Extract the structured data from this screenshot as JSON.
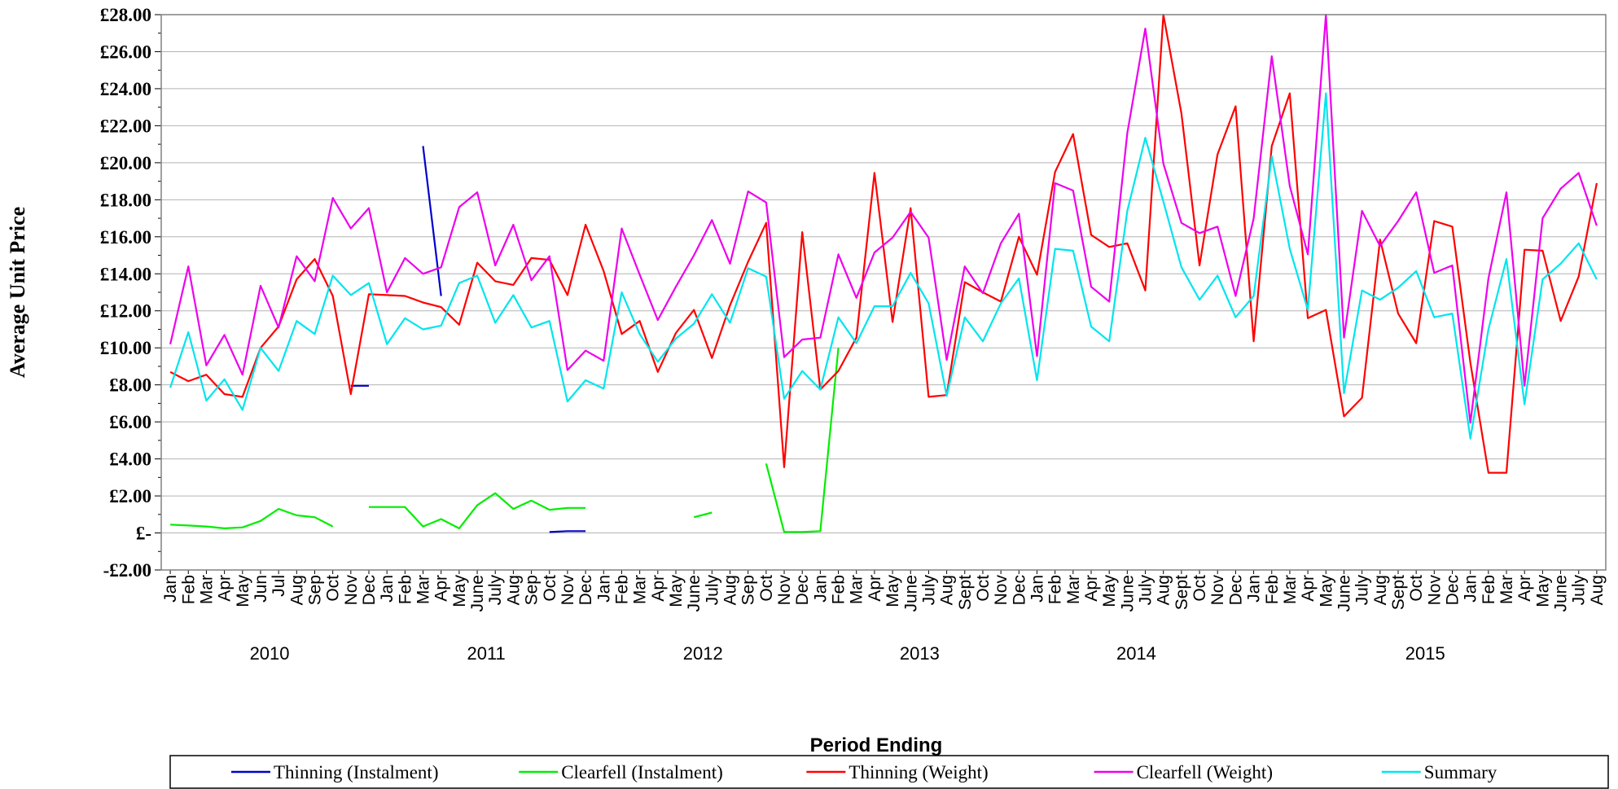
{
  "chart_data": {
    "type": "line",
    "title": "",
    "ylabel": "Average Unit Price",
    "xlabel": "Period Ending",
    "ylim": [
      -2,
      28
    ],
    "y_tick_labels": [
      "-£2.00",
      "£-",
      "£2.00",
      "£4.00",
      "£6.00",
      "£8.00",
      "£10.00",
      "£12.00",
      "£14.00",
      "£16.00",
      "£18.00",
      "£20.00",
      "£22.00",
      "£24.00",
      "£26.00",
      "£28.00"
    ],
    "grid": "horizontal",
    "legend_position": "bottom",
    "categories": [
      "Jan",
      "Feb",
      "Mar",
      "Apr",
      "May",
      "Jun",
      "Jul",
      "Aug",
      "Sep",
      "Oct",
      "Nov",
      "Dec",
      "Jan",
      "Feb",
      "Mar",
      "Apr",
      "May",
      "June",
      "July",
      "Aug",
      "Sep",
      "Oct",
      "Nov",
      "Dec",
      "Jan",
      "Feb",
      "Mar",
      "Apr",
      "May",
      "June",
      "July",
      "Aug",
      "Sep",
      "Oct",
      "Nov",
      "Dec",
      "Jan",
      "Feb",
      "Mar",
      "Apr",
      "May",
      "June",
      "July",
      "Aug",
      "Sept",
      "Oct",
      "Nov",
      "Dec",
      "Jan",
      "Feb",
      "Mar",
      "Apr",
      "May",
      "June",
      "July",
      "Aug",
      "Sept",
      "Oct",
      "Nov",
      "Dec",
      "Jan",
      "Feb",
      "Mar",
      "Apr",
      "May",
      "June",
      "July",
      "Aug",
      "Sept",
      "Oct",
      "Nov",
      "Dec",
      "Jan",
      "Feb",
      "Mar",
      "Apr",
      "May",
      "June",
      "July",
      "Aug"
    ],
    "years": [
      {
        "label": "2010",
        "start": 0,
        "end": 11
      },
      {
        "label": "2011",
        "start": 12,
        "end": 23
      },
      {
        "label": "2012",
        "start": 24,
        "end": 35
      },
      {
        "label": "2013",
        "start": 36,
        "end": 47
      },
      {
        "label": "2014",
        "start": 48,
        "end": 59
      },
      {
        "label": "2015",
        "start": 60,
        "end": 79
      }
    ],
    "series": [
      {
        "name": "Thinning (Instalment)",
        "color": "#0000cc",
        "values": [
          null,
          null,
          null,
          null,
          null,
          null,
          null,
          null,
          null,
          null,
          7.95,
          7.95,
          null,
          null,
          20.9,
          12.8,
          null,
          null,
          null,
          null,
          null,
          0.05,
          0.1,
          0.1,
          null,
          null,
          null,
          null,
          null,
          null,
          null,
          null,
          null,
          null,
          null,
          null,
          null,
          null,
          null,
          null,
          null,
          null,
          null,
          null,
          null,
          null,
          null,
          null,
          null,
          null,
          null,
          null,
          null,
          null,
          null,
          null,
          null,
          null,
          null,
          null,
          null,
          null,
          null,
          null,
          null,
          null,
          null,
          null,
          null,
          null,
          null,
          null,
          null,
          null,
          null,
          null,
          null,
          null,
          null,
          null
        ]
      },
      {
        "name": "Clearfell (Instalment)",
        "color": "#00ee00",
        "values": [
          0.45,
          0.4,
          0.35,
          0.25,
          0.3,
          0.65,
          1.3,
          0.95,
          0.85,
          0.35,
          null,
          1.4,
          1.4,
          1.4,
          0.35,
          0.75,
          0.25,
          1.5,
          2.15,
          1.3,
          1.75,
          1.25,
          1.35,
          1.35,
          null,
          null,
          null,
          null,
          null,
          0.85,
          1.1,
          null,
          null,
          3.75,
          0.05,
          0.05,
          0.1,
          10.0,
          null,
          null,
          null,
          null,
          null,
          null,
          null,
          null,
          null,
          null,
          null,
          null,
          null,
          null,
          null,
          null,
          null,
          null,
          null,
          null,
          null,
          null,
          null,
          null,
          null,
          null,
          null,
          null,
          null,
          null,
          null,
          null,
          null,
          null,
          null,
          null,
          null,
          null,
          null,
          null,
          null,
          null
        ]
      },
      {
        "name": "Thinning (Weight)",
        "color": "#ff0000",
        "values": [
          8.7,
          8.2,
          8.55,
          7.5,
          7.35,
          10.0,
          11.15,
          13.7,
          14.8,
          12.8,
          7.5,
          12.9,
          12.85,
          12.8,
          12.45,
          12.2,
          11.25,
          14.6,
          13.6,
          13.4,
          14.85,
          14.75,
          12.85,
          16.65,
          14.15,
          10.75,
          11.45,
          8.7,
          10.8,
          12.05,
          9.45,
          12.3,
          14.65,
          16.75,
          3.55,
          16.25,
          7.75,
          8.75,
          10.55,
          19.45,
          11.4,
          17.55,
          7.35,
          7.45,
          13.55,
          13.0,
          12.5,
          16.0,
          13.95,
          19.5,
          21.55,
          16.1,
          15.45,
          15.65,
          13.1,
          28.0,
          22.65,
          14.45,
          20.45,
          23.05,
          10.35,
          20.9,
          23.75,
          11.6,
          12.05,
          6.3,
          7.3,
          15.85,
          11.85,
          10.25,
          16.85,
          16.55,
          9.2,
          3.25,
          3.25,
          15.3,
          15.25,
          11.45,
          13.85,
          18.9
        ]
      },
      {
        "name": "Clearfell (Weight)",
        "color": "#ee00ee",
        "values": [
          10.2,
          14.4,
          9.05,
          10.7,
          8.55,
          13.35,
          11.1,
          14.95,
          13.6,
          18.1,
          16.45,
          17.55,
          13.0,
          14.85,
          14.0,
          14.35,
          17.6,
          18.4,
          14.45,
          16.65,
          13.65,
          14.95,
          8.8,
          9.85,
          9.3,
          16.45,
          13.95,
          11.5,
          13.3,
          15.0,
          16.9,
          14.55,
          18.45,
          17.85,
          9.5,
          10.45,
          10.55,
          15.05,
          12.7,
          15.15,
          15.95,
          17.35,
          15.95,
          9.35,
          14.4,
          12.95,
          15.65,
          17.25,
          9.55,
          18.9,
          18.5,
          13.3,
          12.5,
          21.6,
          27.25,
          19.95,
          16.75,
          16.2,
          16.55,
          12.8,
          17.0,
          25.75,
          18.75,
          15.05,
          28.5,
          10.55,
          17.4,
          15.5,
          16.85,
          18.4,
          14.05,
          14.45,
          5.95,
          13.75,
          18.4,
          7.95,
          17.0,
          18.6,
          19.45,
          16.6
        ]
      },
      {
        "name": "Summary",
        "color": "#00e5ee",
        "values": [
          7.85,
          10.85,
          7.15,
          8.3,
          6.65,
          10.0,
          8.75,
          11.45,
          10.75,
          13.9,
          12.85,
          13.5,
          10.2,
          11.6,
          11.0,
          11.2,
          13.5,
          13.9,
          11.35,
          12.85,
          11.1,
          11.45,
          7.1,
          8.25,
          7.8,
          13.0,
          10.75,
          9.25,
          10.5,
          11.3,
          12.9,
          11.35,
          14.3,
          13.85,
          7.25,
          8.75,
          7.75,
          11.65,
          10.25,
          12.25,
          12.25,
          14.05,
          12.4,
          7.4,
          11.65,
          10.35,
          12.4,
          13.75,
          8.25,
          15.35,
          15.25,
          11.15,
          10.35,
          17.4,
          21.35,
          17.9,
          14.35,
          12.6,
          13.9,
          11.65,
          12.8,
          20.35,
          15.35,
          12.05,
          23.75,
          7.55,
          13.1,
          12.6,
          13.25,
          14.15,
          11.65,
          11.85,
          5.1,
          11.0,
          14.8,
          6.95,
          13.7,
          14.55,
          15.65,
          13.7
        ]
      }
    ]
  }
}
